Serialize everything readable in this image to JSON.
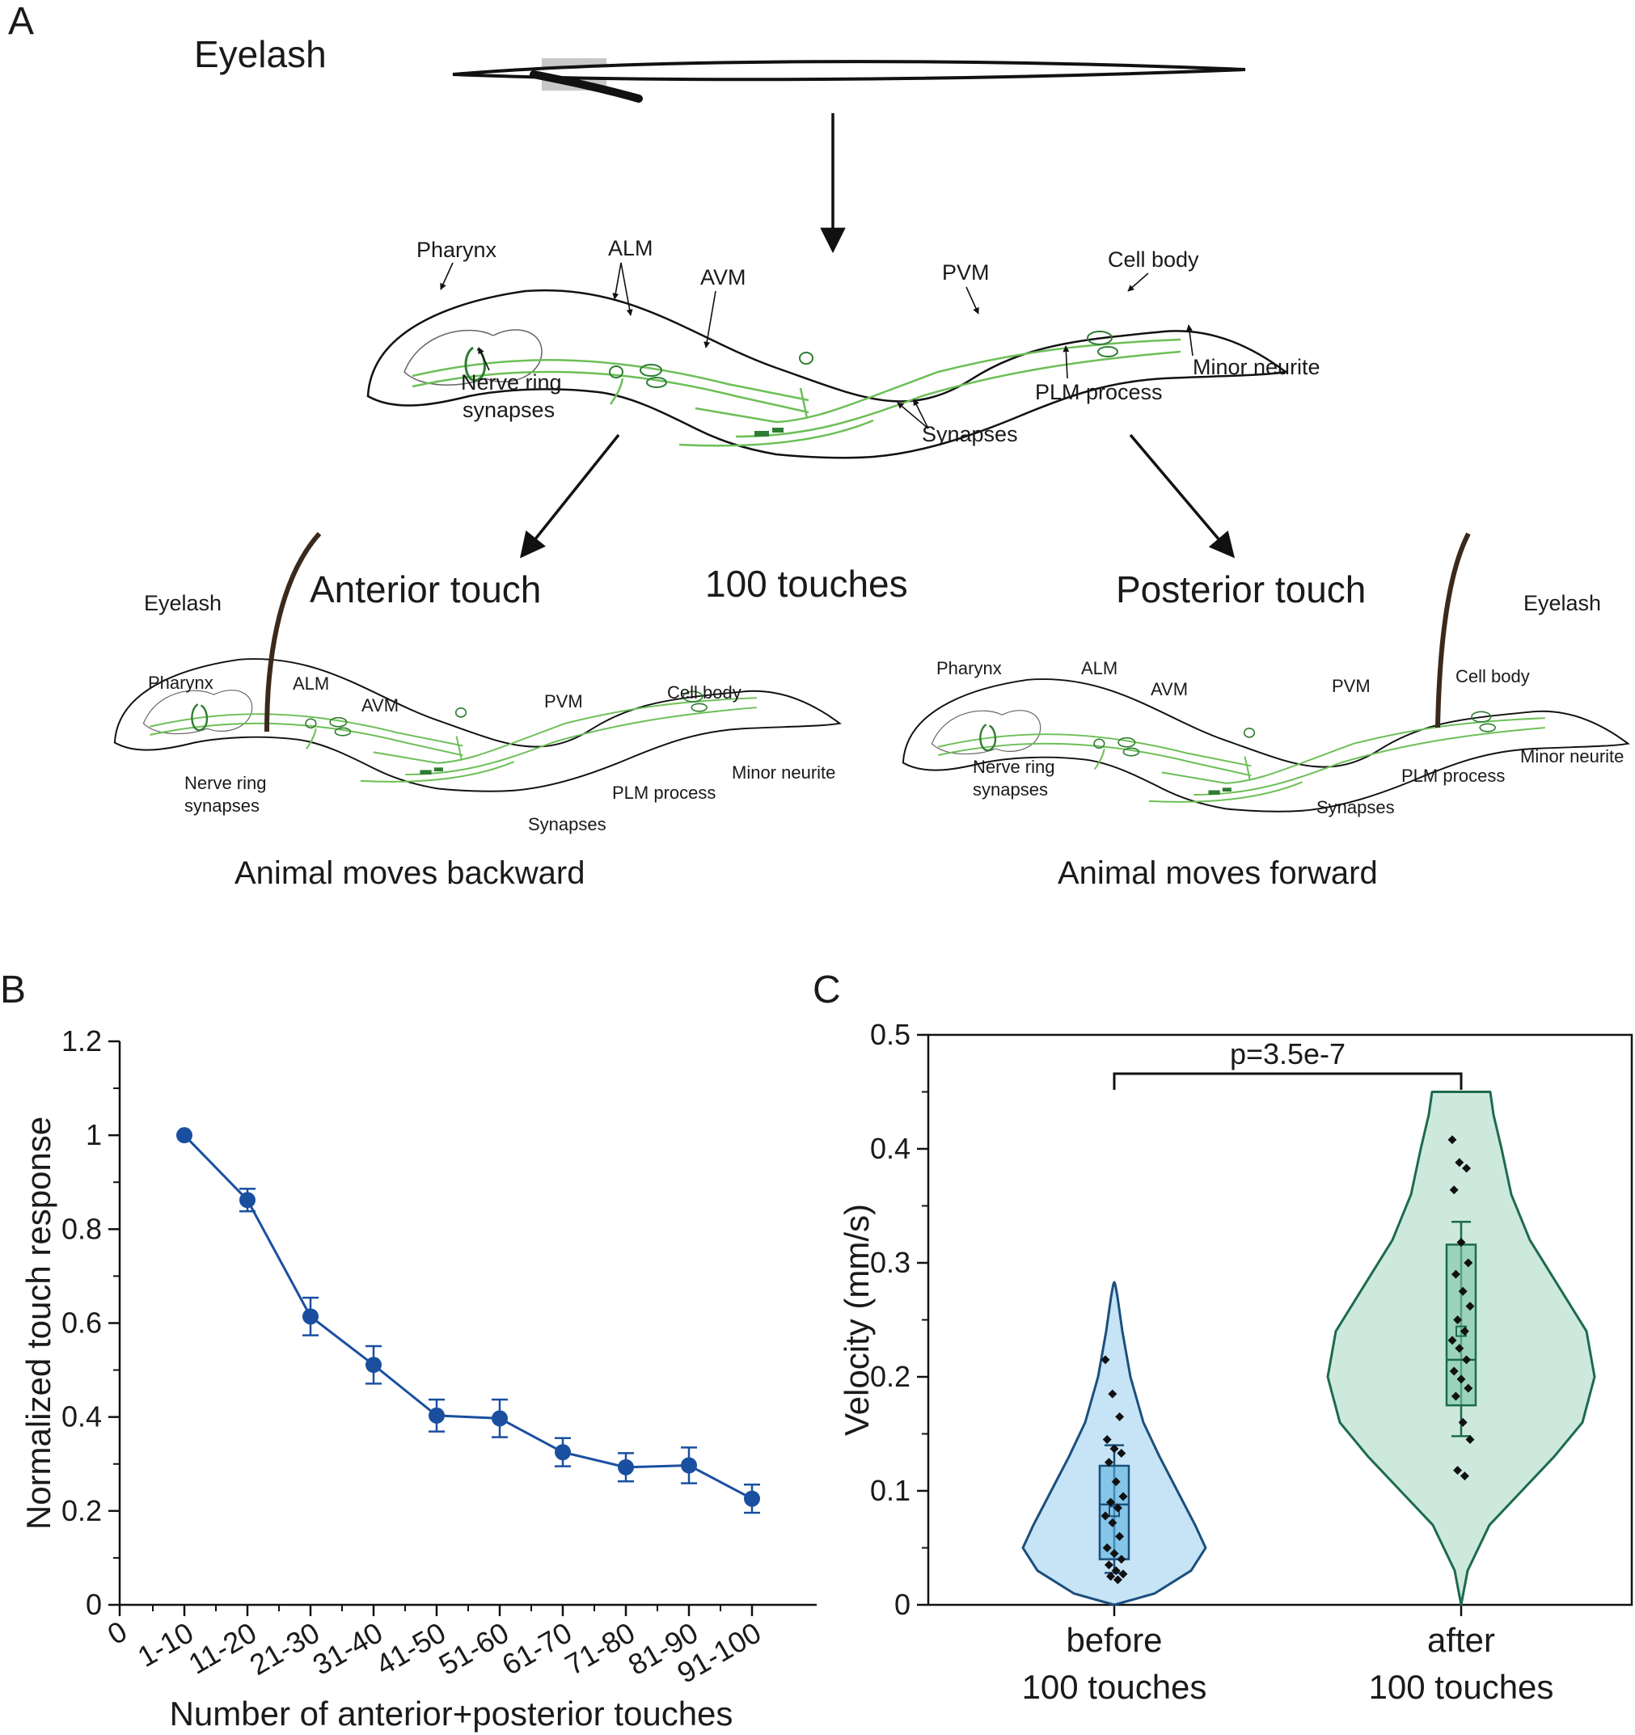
{
  "panel_a": {
    "letter": "A",
    "eyelash_title": "Eyelash",
    "top_worm_labels": {
      "pharynx": "Pharynx",
      "alm": "ALM",
      "avm": "AVM",
      "pvm": "PVM",
      "cell_body": "Cell body",
      "nerve_ring_1": "Nerve ring",
      "nerve_ring_2": "synapses",
      "minor_neurite": "Minor neurite",
      "plm_process": "PLM process",
      "synapses": "Synapses"
    },
    "anterior_touch": "Anterior touch",
    "posterior_touch": "Posterior touch",
    "hundred_touches": "100 touches",
    "eyelash_left": "Eyelash",
    "eyelash_right": "Eyelash",
    "moves_backward": "Animal moves backward",
    "moves_forward": "Animal moves forward",
    "colors": {
      "neurite": "#6cbf57",
      "neuron_dark": "#2e7d32",
      "eyelash_hair": "#3b2a1c"
    }
  },
  "chart_data": [
    {
      "panel": "B",
      "type": "line",
      "xlabel": "Number of anterior+posterior touches",
      "ylabel": "Normalized touch response",
      "x_zero_label": "0",
      "categories": [
        "1-10",
        "11-20",
        "21-30",
        "31-40",
        "41-50",
        "51-60",
        "61-70",
        "71-80",
        "81-90",
        "91-100"
      ],
      "values": [
        1.0,
        0.862,
        0.614,
        0.511,
        0.403,
        0.397,
        0.325,
        0.293,
        0.297,
        0.226
      ],
      "errors": [
        0.0,
        0.024,
        0.04,
        0.04,
        0.034,
        0.04,
        0.03,
        0.03,
        0.038,
        0.03
      ],
      "ylim": [
        0,
        1.2
      ],
      "yticks": [
        {
          "value": 0,
          "label": "0"
        },
        {
          "value": 0.2,
          "label": "0.2"
        },
        {
          "value": 0.4,
          "label": "0.4"
        },
        {
          "value": 0.6,
          "label": "0.6"
        },
        {
          "value": 0.8,
          "label": "0.8"
        },
        {
          "value": 1.0,
          "label": "1"
        },
        {
          "value": 1.2,
          "label": "1.2"
        }
      ],
      "color": "#1a4fa0",
      "grid": false
    },
    {
      "panel": "C",
      "type": "violin",
      "ylabel": "Velocity (mm/s)",
      "ylim": [
        0,
        0.5
      ],
      "yticks": [
        {
          "value": 0,
          "label": "0"
        },
        {
          "value": 0.1,
          "label": "0.1"
        },
        {
          "value": 0.2,
          "label": "0.2"
        },
        {
          "value": 0.3,
          "label": "0.3"
        },
        {
          "value": 0.4,
          "label": "0.4"
        },
        {
          "value": 0.5,
          "label": "0.5"
        }
      ],
      "significance": "p=3.5e-7",
      "groups": [
        {
          "label_line1": "before",
          "label_line2": "100 touches",
          "fill": "#c6e4f6",
          "stroke": "#1b4f7c",
          "box": {
            "q1": 0.04,
            "median": 0.088,
            "q3": 0.122,
            "whisker_low": 0.028,
            "whisker_high": 0.14,
            "mean": 0.082
          },
          "violin_max_y": 0.283,
          "points": [
            0.215,
            0.185,
            0.165,
            0.145,
            0.137,
            0.133,
            0.125,
            0.108,
            0.095,
            0.09,
            0.085,
            0.078,
            0.072,
            0.06,
            0.05,
            0.045,
            0.04,
            0.035,
            0.03,
            0.027,
            0.025,
            0.022
          ]
        },
        {
          "label_line1": "after",
          "label_line2": "100 touches",
          "fill": "#cde9de",
          "stroke": "#1d6b4d",
          "box": {
            "q1": 0.175,
            "median": 0.215,
            "q3": 0.316,
            "whisker_low": 0.148,
            "whisker_high": 0.336,
            "mean": 0.24
          },
          "violin_max_y": 0.45,
          "points": [
            0.408,
            0.388,
            0.383,
            0.364,
            0.318,
            0.3,
            0.29,
            0.275,
            0.262,
            0.25,
            0.24,
            0.232,
            0.225,
            0.215,
            0.205,
            0.198,
            0.19,
            0.183,
            0.16,
            0.145,
            0.118,
            0.113
          ]
        }
      ]
    }
  ]
}
